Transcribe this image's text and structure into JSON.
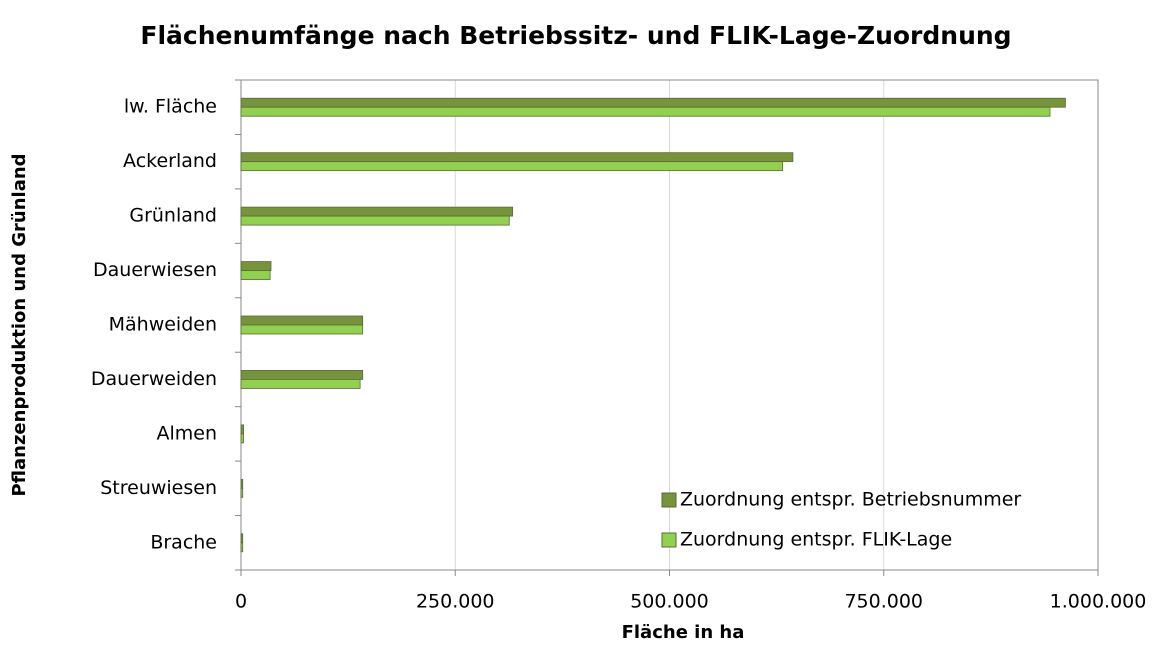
{
  "chart_data": {
    "type": "bar",
    "orientation": "horizontal",
    "title": "Flächenumfänge nach Betriebssitz- und FLIK-Lage-Zuordnung",
    "x_label": "Fläche in ha",
    "y_label": "Pflanzenproduktion und Grünland",
    "categories": [
      "lw. Fläche",
      "Ackerland",
      "Grünland",
      "Dauerwiesen",
      "Mähweiden",
      "Dauerweiden",
      "Almen",
      "Streuwiesen",
      "Brache"
    ],
    "series": [
      {
        "name": "Zuordnung entspr. Betriebsnummer",
        "color": "#77933c",
        "values": [
          962000,
          644000,
          317000,
          35000,
          142000,
          142000,
          3000,
          2000,
          2000
        ]
      },
      {
        "name": "Zuordnung entspr. FLIK-Lage",
        "color": "#92d050",
        "values": [
          944000,
          632000,
          313000,
          34000,
          142000,
          139000,
          3000,
          2000,
          2000
        ]
      }
    ],
    "xlim": [
      0,
      1000000
    ],
    "xticks": [
      0,
      {
        "value": 250000,
        "label": "250.000"
      },
      {
        "value": 500000,
        "label": "500.000"
      },
      {
        "value": 750000,
        "label": "750.000"
      },
      {
        "value": 1000000,
        "label": "1.000.000"
      }
    ],
    "grid": true,
    "legend": "lower right"
  }
}
